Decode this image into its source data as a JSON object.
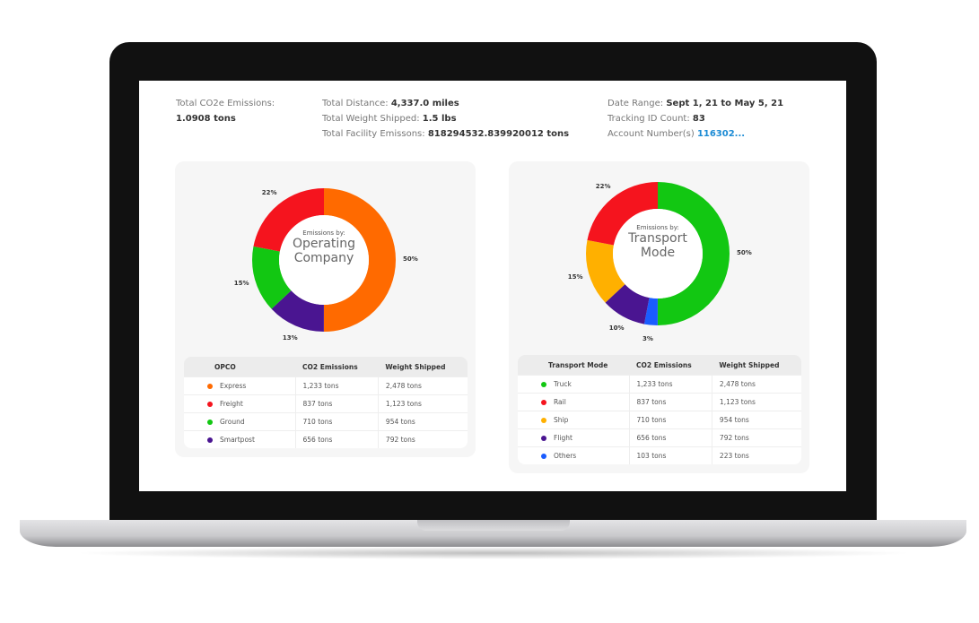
{
  "summary": {
    "co2_label": "Total CO2e Emissions:",
    "co2_value": "1.0908 tons",
    "distance_label": "Total Distance:",
    "distance_value": "4,337.0 miles",
    "weight_label": "Total Weight Shipped:",
    "weight_value": "1.5 lbs",
    "facility_label": "Total Facility Emissons:",
    "facility_value": "818294532.839920012 tons",
    "date_label": "Date Range:",
    "date_value": "Sept 1, 21 to May 5, 21",
    "tracking_label": "Tracking ID Count:",
    "tracking_value": "83",
    "account_label": "Account Number(s)",
    "account_value": "116302..."
  },
  "chart_data": [
    {
      "type": "pie",
      "title_small": "Emissions by:",
      "title": "Operating Company",
      "title_l1": "Operating",
      "title_l2": "Company",
      "slices": [
        {
          "label": "Express",
          "value": 50,
          "color": "#ff6a00",
          "text": "50%"
        },
        {
          "label": "Smartpost",
          "value": 13,
          "color": "#4a1591",
          "text": "13%"
        },
        {
          "label": "Ground",
          "value": 15,
          "color": "#12c712",
          "text": "15%"
        },
        {
          "label": "Freight",
          "value": 22,
          "color": "#f5141e",
          "text": "22%"
        }
      ]
    },
    {
      "type": "pie",
      "title_small": "Emissions by:",
      "title": "Transport Mode",
      "title_l1": "Transport",
      "title_l2": "Mode",
      "slices": [
        {
          "label": "Truck",
          "value": 50,
          "color": "#12c712",
          "text": "50%"
        },
        {
          "label": "Others",
          "value": 3,
          "color": "#1a5cff",
          "text": "3%"
        },
        {
          "label": "Flight",
          "value": 10,
          "color": "#4a1591",
          "text": "10%"
        },
        {
          "label": "Ship",
          "value": 15,
          "color": "#ffb000",
          "text": "15%"
        },
        {
          "label": "Rail",
          "value": 22,
          "color": "#f5141e",
          "text": "22%"
        }
      ]
    }
  ],
  "tables": [
    {
      "headers": [
        "OPCO",
        "CO2 Emissions",
        "Weight Shipped"
      ],
      "rows": [
        {
          "name": "Express",
          "color": "#ff6a00",
          "co2": "1,233 tons",
          "weight": "2,478 tons"
        },
        {
          "name": "Freight",
          "color": "#f5141e",
          "co2": "837 tons",
          "weight": "1,123 tons"
        },
        {
          "name": "Ground",
          "color": "#12c712",
          "co2": "710 tons",
          "weight": "954 tons"
        },
        {
          "name": "Smartpost",
          "color": "#4a1591",
          "co2": "656 tons",
          "weight": "792 tons"
        }
      ]
    },
    {
      "headers": [
        "Transport Mode",
        "CO2 Emissions",
        "Weight Shipped"
      ],
      "rows": [
        {
          "name": "Truck",
          "color": "#12c712",
          "co2": "1,233 tons",
          "weight": "2,478 tons"
        },
        {
          "name": "Rail",
          "color": "#f5141e",
          "co2": "837 tons",
          "weight": "1,123 tons"
        },
        {
          "name": "Ship",
          "color": "#ffb000",
          "co2": "710 tons",
          "weight": "954 tons"
        },
        {
          "name": "Flight",
          "color": "#4a1591",
          "co2": "656 tons",
          "weight": "792 tons"
        },
        {
          "name": "Others",
          "color": "#1a5cff",
          "co2": "103 tons",
          "weight": "223 tons"
        }
      ]
    }
  ]
}
